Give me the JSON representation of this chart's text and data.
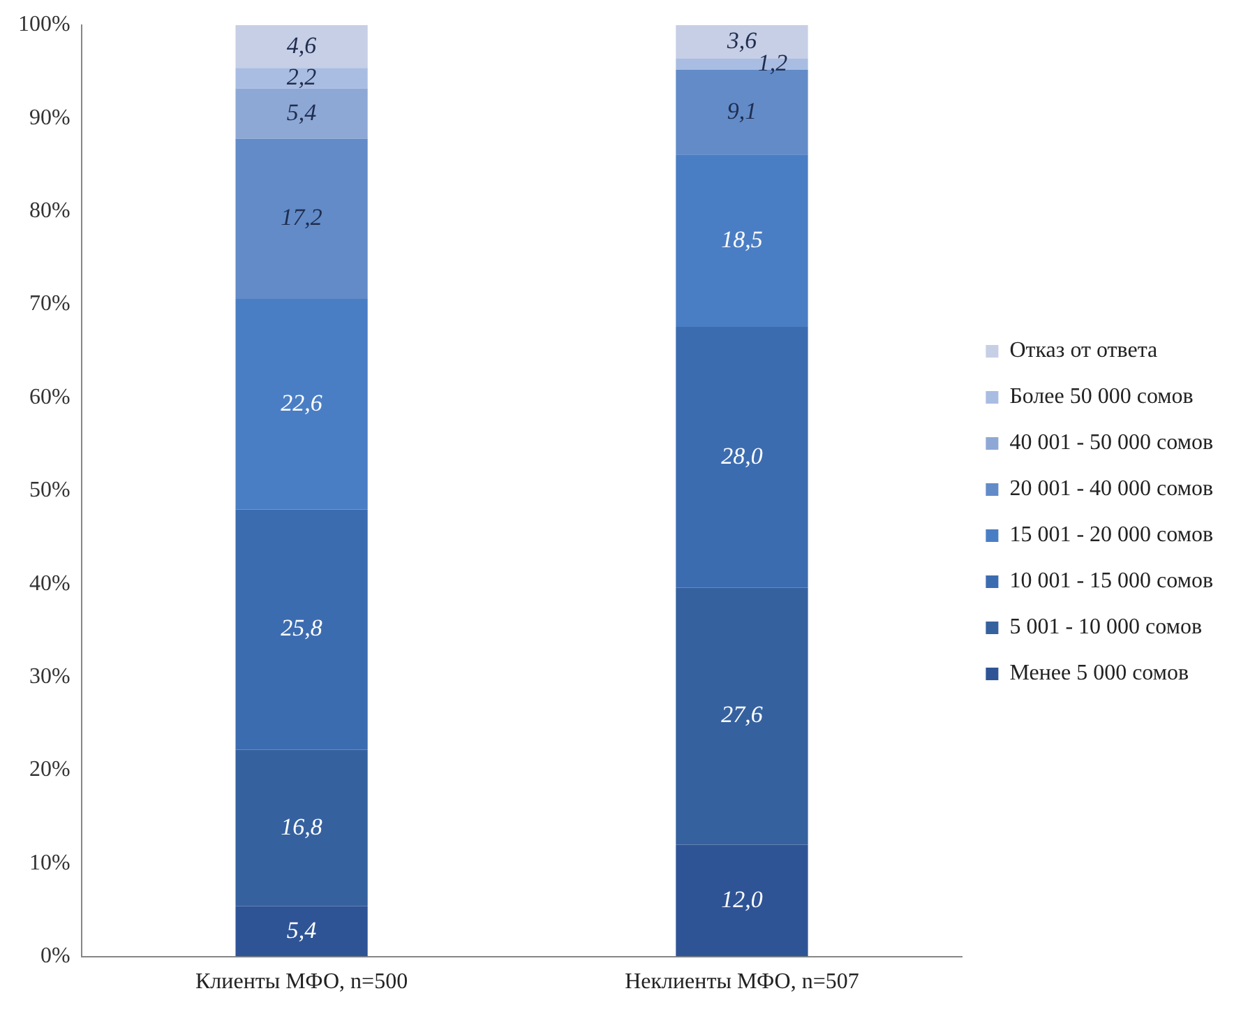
{
  "chart_data": {
    "type": "bar",
    "stacked": true,
    "categories": [
      "Клиенты МФО, n=500",
      "Неклиенты МФО, n=507"
    ],
    "series": [
      {
        "name": "Менее 5 000 сомов",
        "color": "#2f5496",
        "values": [
          5.4,
          12.0
        ],
        "value_labels": [
          "5,4",
          "12,0"
        ]
      },
      {
        "name": "5 001 - 10 000 сомов",
        "color": "#35619f",
        "values": [
          16.8,
          27.6
        ],
        "value_labels": [
          "16,8",
          "27,6"
        ]
      },
      {
        "name": "10 001 - 15 000 сомов",
        "color": "#3c6cb0",
        "values": [
          25.8,
          28.0
        ],
        "value_labels": [
          "25,8",
          "28,0"
        ]
      },
      {
        "name": "15 001 - 20 000 сомов",
        "color": "#4a7ec4",
        "values": [
          22.6,
          18.5
        ],
        "value_labels": [
          "22,6",
          "18,5"
        ]
      },
      {
        "name": "20 001 - 40 000 сомов",
        "color": "#628bc8",
        "values": [
          17.2,
          9.1
        ],
        "value_labels": [
          "17,2",
          "9,1"
        ]
      },
      {
        "name": "40 001 - 50 000 сомов",
        "color": "#8ea8d6",
        "values": [
          5.4,
          0
        ],
        "value_labels": [
          "5,4",
          null
        ]
      },
      {
        "name": "Более 50 000 сомов",
        "color": "#a9bde2",
        "values": [
          2.2,
          1.2
        ],
        "value_labels": [
          "2,2",
          "1,2"
        ]
      },
      {
        "name": "Отказ от ответа",
        "color": "#c7cfe6",
        "values": [
          4.6,
          3.6
        ],
        "value_labels": [
          "4,6",
          "3,6"
        ]
      }
    ],
    "ylim": [
      0,
      100
    ],
    "yticks": [
      {
        "value": 0,
        "label": "0%"
      },
      {
        "value": 10,
        "label": "10%"
      },
      {
        "value": 20,
        "label": "20%"
      },
      {
        "value": 30,
        "label": "30%"
      },
      {
        "value": 40,
        "label": "40%"
      },
      {
        "value": 50,
        "label": "50%"
      },
      {
        "value": 60,
        "label": "60%"
      },
      {
        "value": 70,
        "label": "70%"
      },
      {
        "value": 80,
        "label": "80%"
      },
      {
        "value": 90,
        "label": "90%"
      },
      {
        "value": 100,
        "label": "100%"
      }
    ],
    "grid": false,
    "legend": "right"
  }
}
